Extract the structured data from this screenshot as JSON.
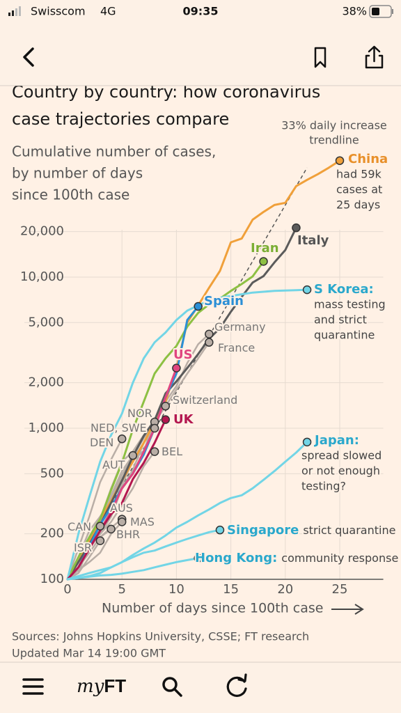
{
  "status_bar": {
    "carrier": "Swisscom",
    "network": "4G",
    "time": "09:35",
    "battery": "38%"
  },
  "chart_data": {
    "type": "line",
    "title": [
      "Country by country: how coronavirus",
      "case trajectories compare"
    ],
    "subtitle": [
      "Cumulative number of cases,",
      "by number of days",
      "since 100th case"
    ],
    "xlabel": "Number of days since 100th case",
    "log_y": true,
    "grid": true,
    "x": [
      0,
      1,
      2,
      3,
      4,
      5,
      6,
      7,
      8,
      9,
      10,
      11,
      12,
      13,
      14,
      15,
      16,
      17,
      18,
      19,
      20,
      21,
      22,
      23,
      24,
      25
    ],
    "xlim": [
      0,
      29
    ],
    "xticks": [
      0,
      5,
      10,
      15,
      20,
      25
    ],
    "ylim": [
      100,
      80000
    ],
    "yticks": [
      100,
      200,
      500,
      {
        "value": 1000,
        "label": "1,000"
      },
      {
        "value": 2000,
        "label": "2,000"
      },
      {
        "value": 5000,
        "label": "5,000"
      },
      {
        "value": 10000,
        "label": "10,000"
      },
      {
        "value": 20000,
        "label": "20,000"
      }
    ],
    "trendline": {
      "label": [
        "33% daily increase",
        "trendline"
      ],
      "x": [
        0,
        22
      ],
      "values": [
        100,
        53000
      ],
      "color": "#555555"
    },
    "series": [
      {
        "name": "China",
        "color": "#f0a03a",
        "label_color": "#e8902a",
        "note": [
          "had 59k",
          "cases at",
          "25 days"
        ],
        "values": [
          100,
          130,
          180,
          250,
          330,
          450,
          600,
          800,
          1100,
          1500,
          2500,
          5000,
          6500,
          8500,
          11000,
          17000,
          18000,
          24000,
          27000,
          30000,
          31000,
          40000,
          44000,
          48000,
          53000,
          59000
        ]
      },
      {
        "name": "Italy",
        "color": "#5b5b5b",
        "label_color": "#555555",
        "values": [
          100,
          130,
          170,
          230,
          320,
          450,
          650,
          890,
          1130,
          1700,
          2040,
          2500,
          3100,
          3900,
          4600,
          5900,
          7400,
          9200,
          10150,
          12500,
          15100,
          21200,
          null,
          null,
          null,
          null
        ]
      },
      {
        "name": "Iran",
        "color": "#8dc043",
        "label_color": "#7aae34",
        "values": [
          100,
          140,
          190,
          250,
          390,
          590,
          980,
          1500,
          2300,
          2900,
          3500,
          4700,
          5800,
          6600,
          7200,
          8100,
          9000,
          10100,
          12700,
          null,
          null,
          null,
          null,
          null,
          null,
          null
        ]
      },
      {
        "name": "Spain",
        "color": "#2b8fd6",
        "label_color": "#2b8fd6",
        "values": [
          100,
          120,
          165,
          230,
          300,
          400,
          500,
          670,
          1000,
          1600,
          2300,
          5200,
          6400,
          null,
          null,
          null,
          null,
          null,
          null,
          null,
          null,
          null,
          null,
          null,
          null,
          null
        ]
      },
      {
        "name": "S Korea:",
        "color": "#72d5e6",
        "label_color": "#2aa8cc",
        "note": [
          "mass testing",
          "and strict",
          "quarantine"
        ],
        "values": [
          100,
          200,
          350,
          600,
          900,
          1250,
          2000,
          2900,
          3700,
          4300,
          5200,
          6000,
          6500,
          7000,
          7300,
          7500,
          7700,
          7900,
          8000,
          8100,
          8150,
          8200,
          8250,
          null,
          null,
          null
        ]
      },
      {
        "name": "Germany",
        "color": "#b9aea6",
        "values": [
          100,
          130,
          160,
          200,
          260,
          400,
          530,
          800,
          1100,
          1500,
          1900,
          2700,
          3600,
          4200,
          null,
          null,
          null,
          null,
          null,
          null,
          null,
          null,
          null,
          null,
          null,
          null
        ]
      },
      {
        "name": "France",
        "color": "#b9aea6",
        "values": [
          100,
          130,
          190,
          210,
          290,
          420,
          610,
          710,
          1100,
          1400,
          1800,
          2300,
          2900,
          3700,
          null,
          null,
          null,
          null,
          null,
          null,
          null,
          null,
          null,
          null,
          null,
          null
        ]
      },
      {
        "name": "US",
        "color": "#e0457f",
        "label_color": "#e0457f",
        "values": [
          100,
          120,
          160,
          210,
          280,
          400,
          500,
          700,
          1000,
          1600,
          2500,
          null,
          null,
          null,
          null,
          null,
          null,
          null,
          null,
          null,
          null,
          null,
          null,
          null,
          null,
          null
        ]
      },
      {
        "name": "Switzerland",
        "color": "#b9aea6",
        "values": [
          100,
          140,
          210,
          260,
          340,
          490,
          650,
          860,
          1100,
          1400,
          null,
          null,
          null,
          null,
          null,
          null,
          null,
          null,
          null,
          null,
          null,
          null,
          null,
          null,
          null,
          null
        ]
      },
      {
        "name": "UK",
        "color": "#b3174f",
        "label_color": "#b3174f",
        "values": [
          100,
          120,
          160,
          210,
          270,
          320,
          460,
          590,
          800,
          1140,
          null,
          null,
          null,
          null,
          null,
          null,
          null,
          null,
          null,
          null,
          null,
          null,
          null,
          null,
          null,
          null
        ]
      },
      {
        "name": "NOR",
        "color": "#b9aea6",
        "values": [
          100,
          130,
          170,
          250,
          400,
          600,
          700,
          900,
          1100,
          null,
          null,
          null,
          null,
          null,
          null,
          null,
          null,
          null,
          null,
          null,
          null,
          null,
          null,
          null,
          null,
          null
        ]
      },
      {
        "name": "NED, SWE",
        "color": "#b9aea6",
        "values": [
          100,
          130,
          190,
          260,
          330,
          460,
          620,
          800,
          1000,
          null,
          null,
          null,
          null,
          null,
          null,
          null,
          null,
          null,
          null,
          null,
          null,
          null,
          null,
          null,
          null,
          null
        ]
      },
      {
        "name": "DEN",
        "color": "#b9aea6",
        "values": [
          100,
          160,
          260,
          440,
          620,
          850,
          null,
          null,
          null,
          null,
          null,
          null,
          null,
          null,
          null,
          null,
          null,
          null,
          null,
          null,
          null,
          null,
          null,
          null,
          null,
          null
        ]
      },
      {
        "name": "AUT",
        "color": "#b9aea6",
        "values": [
          100,
          130,
          180,
          240,
          360,
          520,
          660,
          null,
          null,
          null,
          null,
          null,
          null,
          null,
          null,
          null,
          null,
          null,
          null,
          null,
          null,
          null,
          null,
          null,
          null,
          null
        ]
      },
      {
        "name": "BEL",
        "color": "#b9aea6",
        "values": [
          100,
          110,
          170,
          200,
          240,
          310,
          400,
          560,
          700,
          null,
          null,
          null,
          null,
          null,
          null,
          null,
          null,
          null,
          null,
          null,
          null,
          null,
          null,
          null,
          null,
          null
        ]
      },
      {
        "name": "AUS",
        "color": "#b9aea6",
        "values": [
          100,
          120,
          150,
          190,
          220,
          250,
          null,
          null,
          null,
          null,
          null,
          null,
          null,
          null,
          null,
          null,
          null,
          null,
          null,
          null,
          null,
          null,
          null,
          null,
          null,
          null
        ]
      },
      {
        "name": "CAN",
        "color": "#b9aea6",
        "values": [
          100,
          140,
          180,
          225,
          null,
          null,
          null,
          null,
          null,
          null,
          null,
          null,
          null,
          null,
          null,
          null,
          null,
          null,
          null,
          null,
          null,
          null,
          null,
          null,
          null,
          null
        ]
      },
      {
        "name": "MAS",
        "color": "#b9aea6",
        "values": [
          100,
          115,
          130,
          150,
          200,
          240,
          null,
          null,
          null,
          null,
          null,
          null,
          null,
          null,
          null,
          null,
          null,
          null,
          null,
          null,
          null,
          null,
          null,
          null,
          null,
          null
        ]
      },
      {
        "name": "BHR",
        "color": "#b9aea6",
        "values": [
          100,
          130,
          170,
          190,
          215,
          null,
          null,
          null,
          null,
          null,
          null,
          null,
          null,
          null,
          null,
          null,
          null,
          null,
          null,
          null,
          null,
          null,
          null,
          null,
          null,
          null
        ]
      },
      {
        "name": "ISR",
        "color": "#b9aea6",
        "values": [
          100,
          110,
          140,
          180,
          null,
          null,
          null,
          null,
          null,
          null,
          null,
          null,
          null,
          null,
          null,
          null,
          null,
          null,
          null,
          null,
          null,
          null,
          null,
          null,
          null,
          null
        ]
      },
      {
        "name": "Japan:",
        "color": "#72d5e6",
        "label_color": "#2aa8cc",
        "note": [
          "spread slowed",
          "or not enough",
          "testing?"
        ],
        "values": [
          100,
          102,
          105,
          110,
          120,
          130,
          145,
          160,
          175,
          195,
          220,
          240,
          265,
          290,
          320,
          345,
          360,
          400,
          455,
          520,
          600,
          690,
          810,
          null,
          null,
          null
        ]
      },
      {
        "name": "Singapore",
        "color": "#72d5e6",
        "label_color": "#2aa8cc",
        "note": [
          "strict quarantine"
        ],
        "values": [
          100,
          105,
          110,
          115,
          120,
          130,
          140,
          150,
          155,
          165,
          175,
          185,
          195,
          205,
          212,
          null,
          null,
          null,
          null,
          null,
          null,
          null,
          null,
          null,
          null,
          null
        ]
      },
      {
        "name": "Hong Kong:",
        "color": "#72d5e6",
        "label_color": "#2aa8cc",
        "note": [
          "community response"
        ],
        "values": [
          100,
          102,
          104,
          106,
          107,
          109,
          112,
          115,
          120,
          125,
          130,
          134,
          138,
          null,
          null,
          null,
          null,
          null,
          null,
          null,
          null,
          null,
          null,
          null,
          null,
          null
        ]
      }
    ]
  },
  "footer": {
    "sources": "Sources: Johns Hopkins University, CSSE; FT research",
    "updated": "Updated Mar 14 19:00 GMT"
  },
  "tab_bar": {
    "brand_my": "my",
    "brand_ft": "FT"
  }
}
